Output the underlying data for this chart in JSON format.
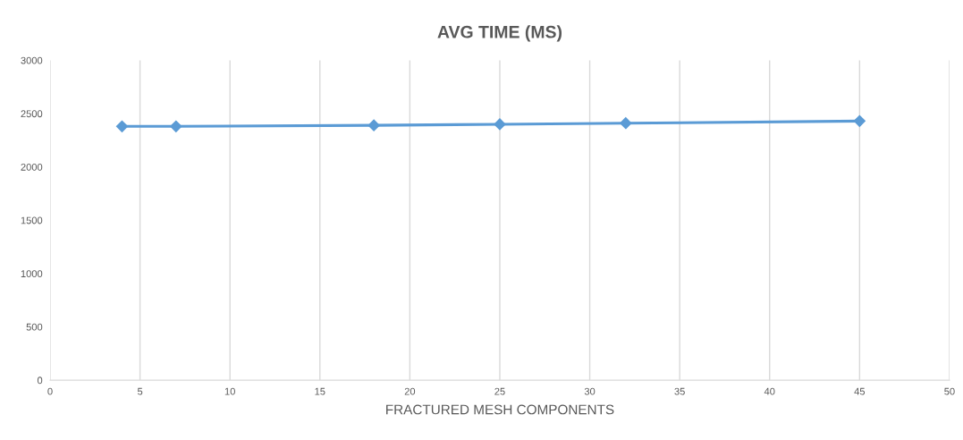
{
  "chart_data": {
    "type": "line",
    "title": "AVG TIME (MS)",
    "xlabel": "FRACTURED MESH COMPONENTS",
    "x": [
      4,
      7,
      18,
      25,
      32,
      45
    ],
    "series": [
      {
        "color": "#5b9bd5",
        "values": [
          2380,
          2380,
          2390,
          2400,
          2410,
          2430
        ]
      }
    ],
    "xlim": [
      0,
      50
    ],
    "xticks": [
      0,
      5,
      10,
      15,
      20,
      25,
      30,
      35,
      40,
      45,
      50
    ],
    "ylim": [
      0,
      3000
    ],
    "yticks": [
      0,
      500,
      1000,
      1500,
      2000,
      2500,
      3000
    ],
    "grid": "x",
    "marker": "diamond",
    "line_style": "solid"
  }
}
